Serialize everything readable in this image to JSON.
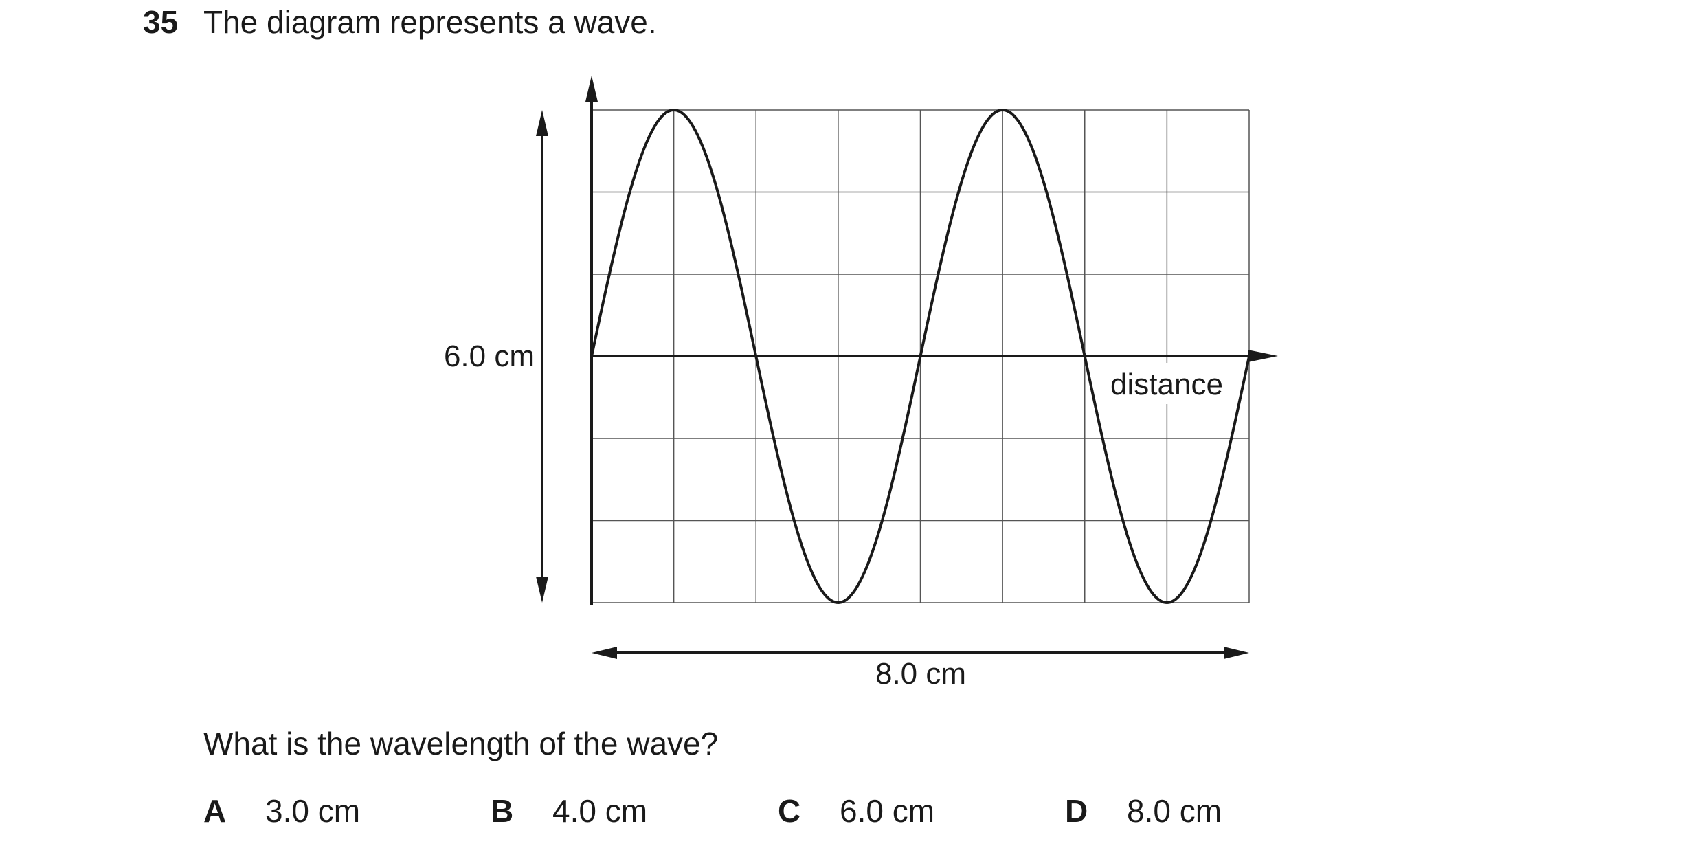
{
  "question": {
    "number": "35",
    "stem": "The diagram represents a wave."
  },
  "diagram": {
    "x_axis_label": "distance",
    "height_label": "6.0 cm",
    "width_label": "8.0 cm",
    "grid": {
      "columns": 8,
      "rows": 6
    },
    "wave": {
      "wavelength_columns": 4,
      "amplitude_rows": 3,
      "cycles": 2
    }
  },
  "prompt": "What is the wavelength of the wave?",
  "options": [
    {
      "letter": "A",
      "value": "3.0 cm"
    },
    {
      "letter": "B",
      "value": "4.0 cm"
    },
    {
      "letter": "C",
      "value": "6.0 cm"
    },
    {
      "letter": "D",
      "value": "8.0 cm"
    }
  ]
}
